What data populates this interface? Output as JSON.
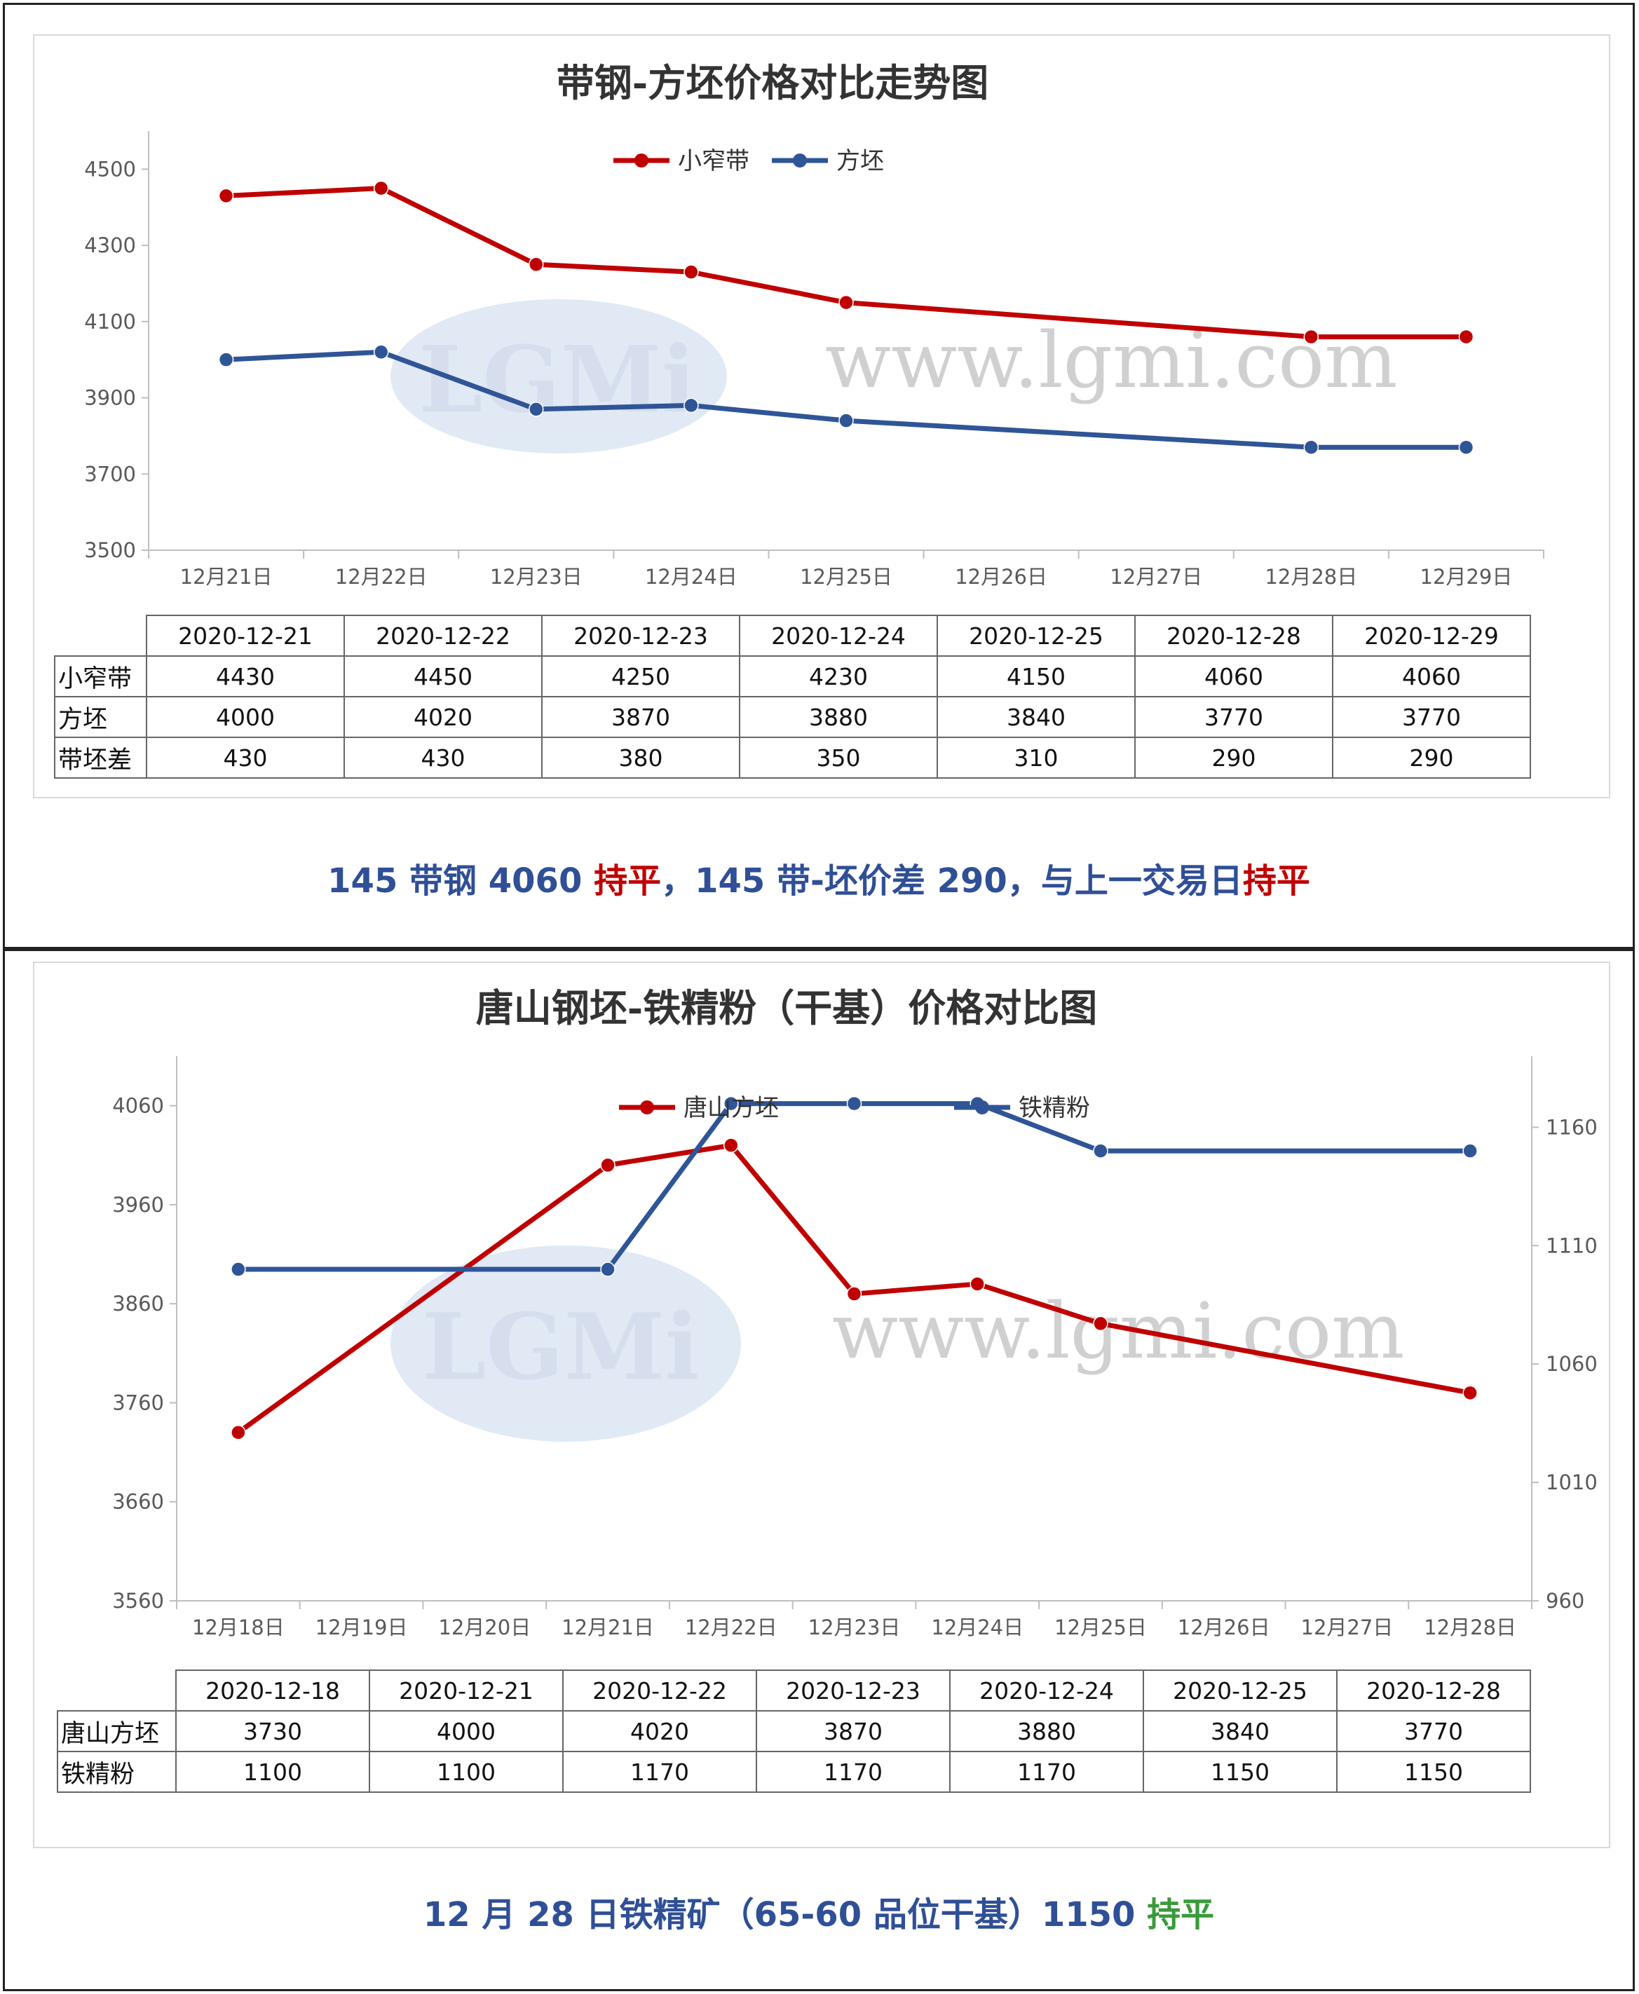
{
  "colors": {
    "red": "#c00000",
    "blue": "#2f5597",
    "caption_blue": "#2f4f96",
    "green": "#3a9a3a"
  },
  "watermark": {
    "logo": "LGMi",
    "url": "www.lgmi.com"
  },
  "chart1": {
    "title": "带钢-方坯价格对比走势图",
    "table": {
      "headers": [
        "2020-12-21",
        "2020-12-22",
        "2020-12-23",
        "2020-12-24",
        "2020-12-25",
        "2020-12-28",
        "2020-12-29"
      ],
      "rows": [
        {
          "label": "小窄带",
          "values": [
            "4430",
            "4450",
            "4250",
            "4230",
            "4150",
            "4060",
            "4060"
          ]
        },
        {
          "label": "方坯",
          "values": [
            "4000",
            "4020",
            "3870",
            "3880",
            "3840",
            "3770",
            "3770"
          ]
        },
        {
          "label": "带坯差",
          "values": [
            "430",
            "430",
            "380",
            "350",
            "310",
            "290",
            "290"
          ]
        }
      ]
    },
    "caption": {
      "p1": "145 带钢 4060 ",
      "p2": "持平",
      "p3": "，145 带-坯价差 290，与上一交易日",
      "p4": "持平"
    }
  },
  "chart2": {
    "title": "唐山钢坯-铁精粉（干基）价格对比图",
    "table": {
      "headers": [
        "2020-12-18",
        "2020-12-21",
        "2020-12-22",
        "2020-12-23",
        "2020-12-24",
        "2020-12-25",
        "2020-12-28"
      ],
      "rows": [
        {
          "label": "唐山方坯",
          "values": [
            "3730",
            "4000",
            "4020",
            "3870",
            "3880",
            "3840",
            "3770"
          ]
        },
        {
          "label": "铁精粉",
          "values": [
            "1100",
            "1100",
            "1170",
            "1170",
            "1170",
            "1150",
            "1150"
          ]
        }
      ]
    },
    "caption": {
      "p1": "12 月 28 日铁精矿（65-60 品位干基）1150 ",
      "p2": "持平"
    }
  },
  "chart_data": [
    {
      "type": "line",
      "title": "带钢-方坯价格对比走势图",
      "categories": [
        "12月21日",
        "12月22日",
        "12月23日",
        "12月24日",
        "12月25日",
        "12月26日",
        "12月27日",
        "12月28日",
        "12月29日"
      ],
      "series": [
        {
          "name": "小窄带",
          "color": "#c00000",
          "values": [
            4430,
            4450,
            4250,
            4230,
            4150,
            null,
            null,
            4060,
            4060
          ]
        },
        {
          "name": "方坯",
          "color": "#2f5597",
          "values": [
            4000,
            4020,
            3870,
            3880,
            3840,
            null,
            null,
            3770,
            3770
          ]
        }
      ],
      "y_ticks": [
        3500,
        3700,
        3900,
        4100,
        4300,
        4500
      ],
      "ylim": [
        3500,
        4600
      ],
      "legend": "top-center",
      "grid": false
    },
    {
      "type": "line",
      "title": "唐山钢坯-铁精粉（干基）价格对比图",
      "categories": [
        "12月18日",
        "12月19日",
        "12月20日",
        "12月21日",
        "12月22日",
        "12月23日",
        "12月24日",
        "12月25日",
        "12月26日",
        "12月27日",
        "12月28日"
      ],
      "series": [
        {
          "name": "唐山方坯",
          "color": "#c00000",
          "axis": "left",
          "values": [
            3730,
            null,
            null,
            4000,
            4020,
            3870,
            3880,
            3840,
            null,
            null,
            3770
          ]
        },
        {
          "name": "铁精粉",
          "color": "#2f5597",
          "axis": "right",
          "values": [
            1100,
            null,
            null,
            1100,
            1170,
            1170,
            1170,
            1150,
            null,
            null,
            1150
          ]
        }
      ],
      "y_ticks": [
        3560,
        3660,
        3760,
        3860,
        3960,
        4060
      ],
      "ylim": [
        3560,
        4110
      ],
      "y2_ticks": [
        960,
        1010,
        1060,
        1110,
        1160
      ],
      "y2lim": [
        960,
        1190
      ],
      "legend": "top-center",
      "grid": false
    }
  ]
}
